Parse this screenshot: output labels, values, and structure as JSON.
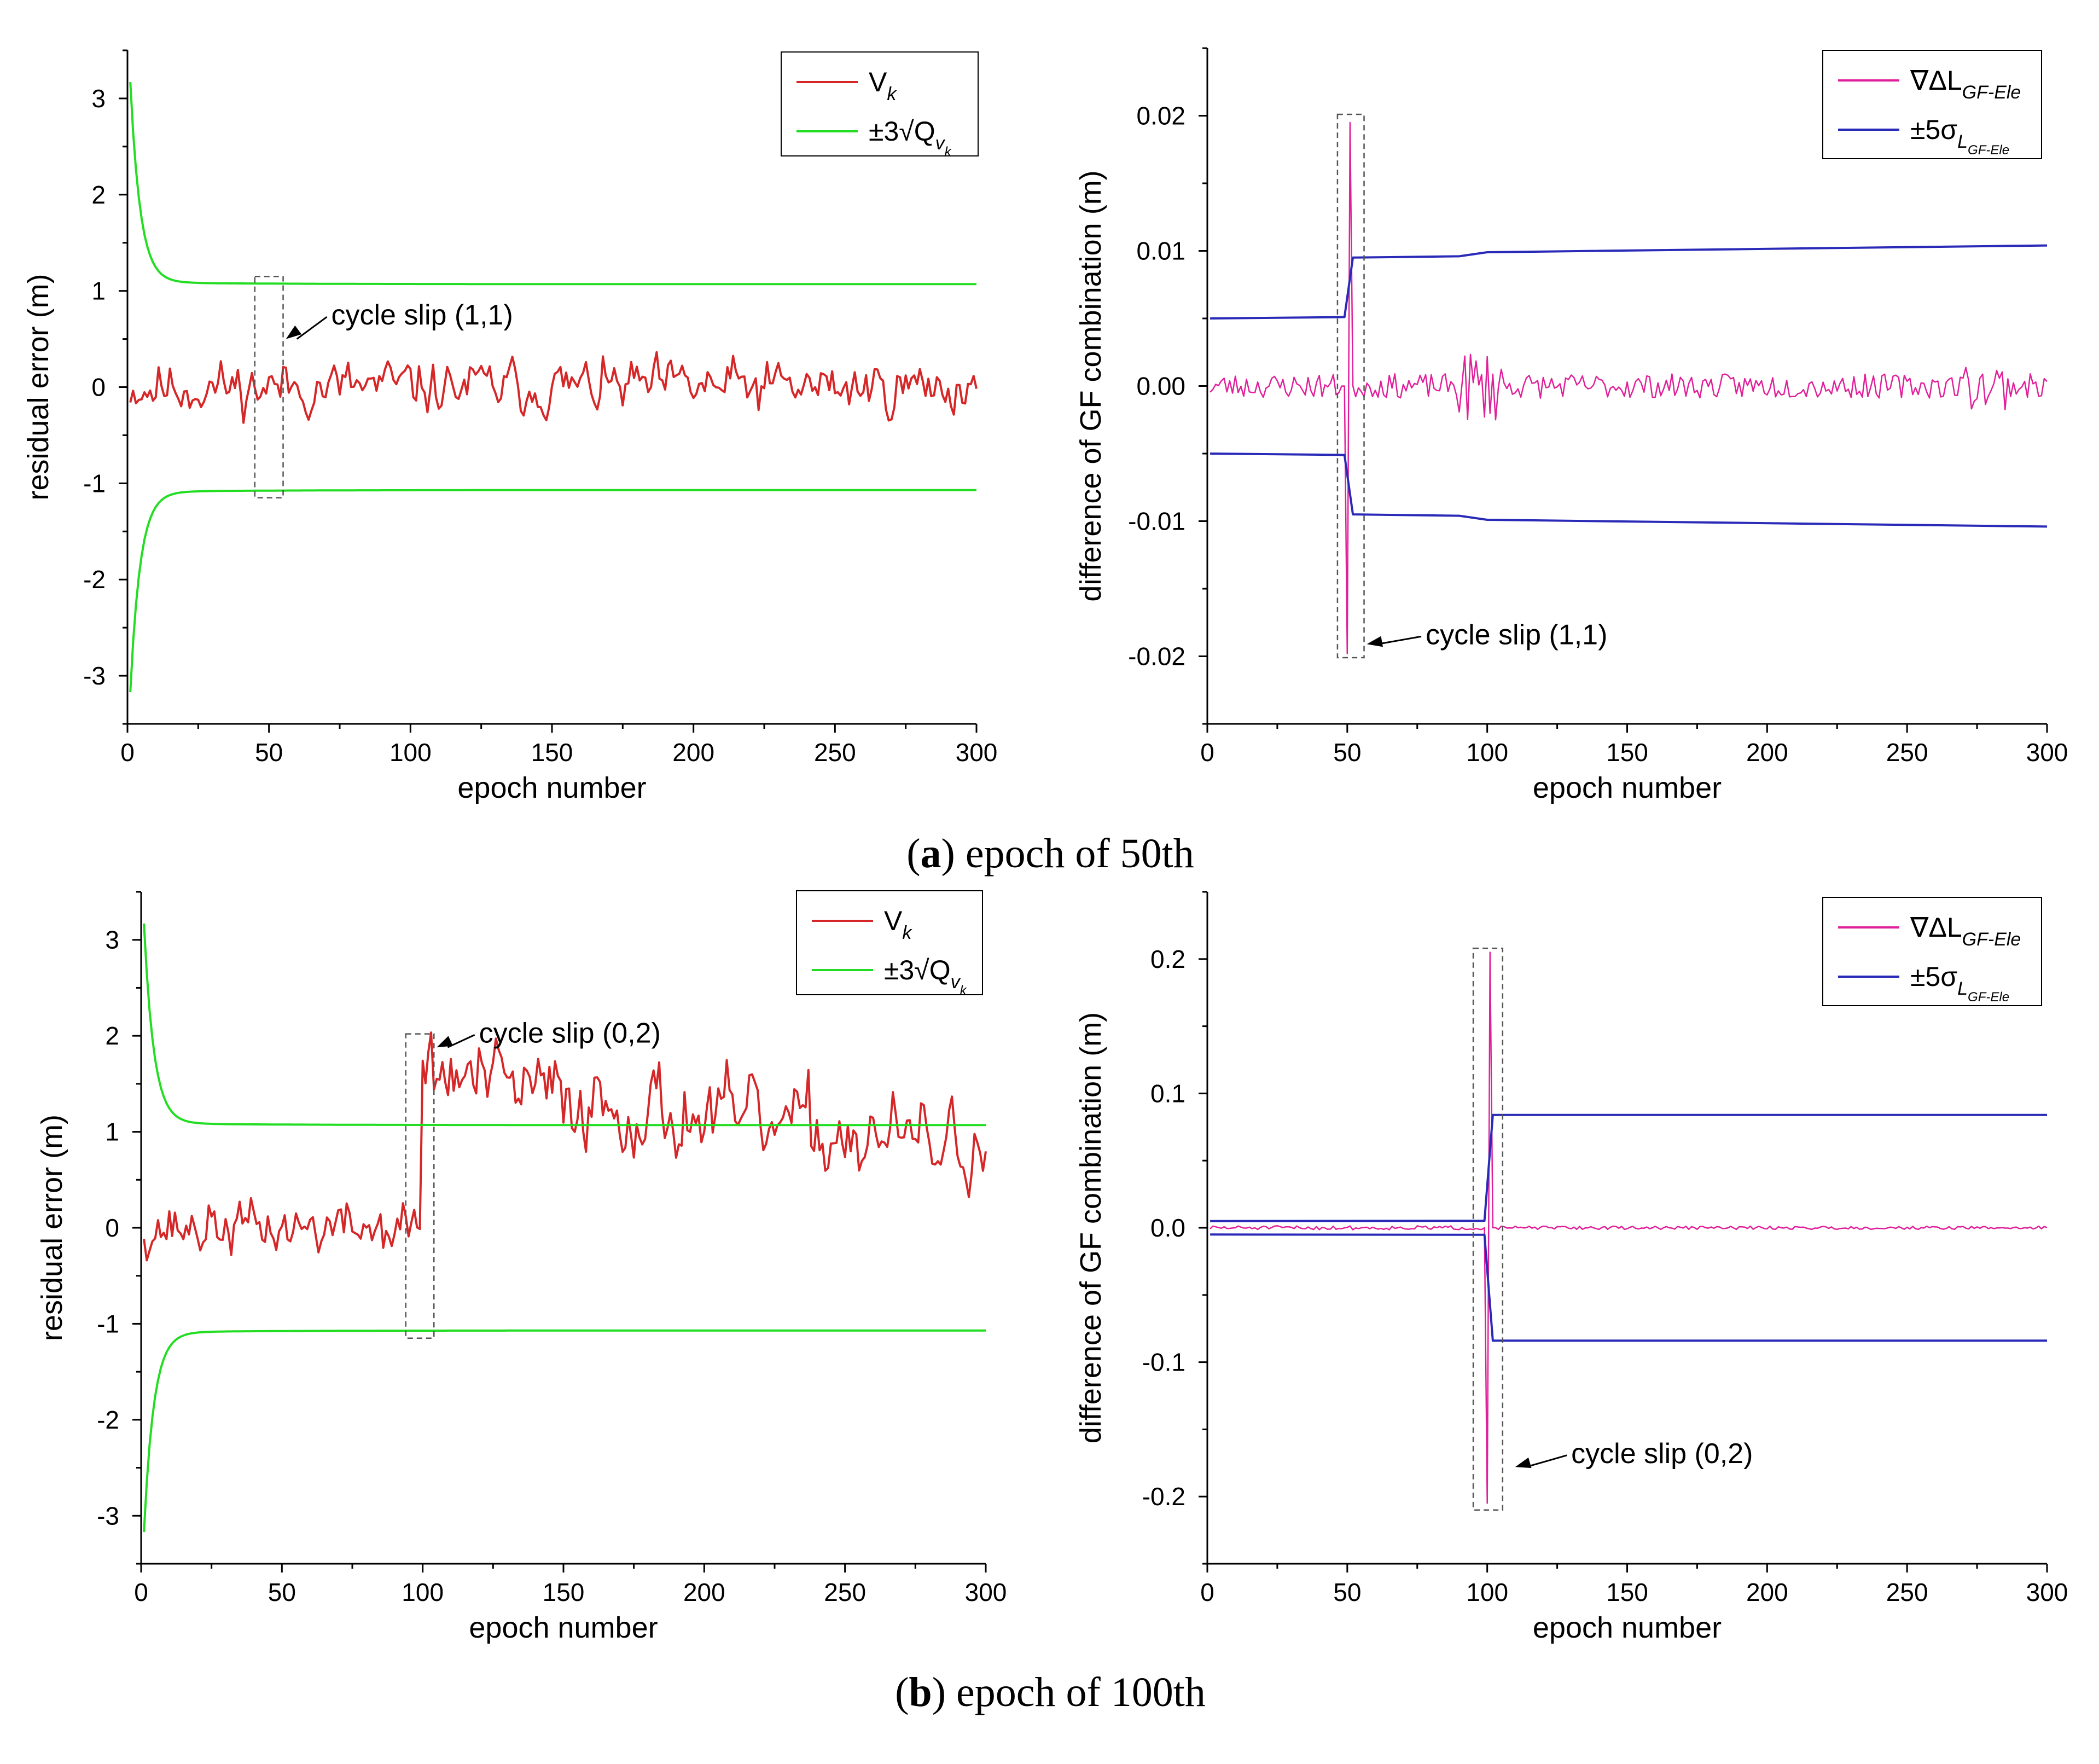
{
  "colors": {
    "residual": "#d62728",
    "threshold": "#22dd22",
    "gf": "#e0209a",
    "sigma": "#2a2ab8",
    "axis": "#000000",
    "box": "#555555"
  },
  "captions": [
    {
      "letter": "a",
      "text": ") epoch of 50th",
      "open": "("
    },
    {
      "letter": "b",
      "text": ") epoch of 100th",
      "open": "("
    }
  ],
  "chart_data": [
    {
      "id": "a-left",
      "type": "line",
      "xlabel": "epoch number",
      "ylabel": "residual error (m)",
      "xlim": [
        0,
        300
      ],
      "ylim": [
        -3.5,
        3.5
      ],
      "xticks": [
        0,
        50,
        100,
        150,
        200,
        250,
        300
      ],
      "yticks": [
        -3,
        -2,
        -1,
        0,
        1,
        2,
        3
      ],
      "ytick_labels": [
        "-3",
        "-2",
        "-1",
        "0",
        "1",
        "2",
        "3"
      ],
      "legend": [
        {
          "base": "V",
          "sub": "k",
          "subsub": ""
        },
        {
          "base": "±3√Q",
          "sub": "v",
          "subsub": "k"
        }
      ],
      "series": [
        {
          "name": "V_k",
          "kind": "noise",
          "seed": 11,
          "start": 1,
          "end": 300,
          "amp": 0.23,
          "jump_epoch": 0,
          "jump_size": 0,
          "decay": 0,
          "spike": []
        },
        {
          "name": "+3√Q",
          "kind": "threshold",
          "limit": 1.07,
          "start_val": 3.15,
          "tau": 3.5
        },
        {
          "name": "-3√Q",
          "kind": "threshold",
          "limit": -1.07,
          "start_val": -3.15,
          "tau": 3.5
        }
      ],
      "box": {
        "x1": 45,
        "x2": 55,
        "y1": -1.15,
        "y2": 1.15
      },
      "annotation": {
        "text": "cycle slip (1,1)",
        "x": 72,
        "y": 0.65,
        "arrow_to": [
          56,
          0.5
        ]
      }
    },
    {
      "id": "a-right",
      "type": "line",
      "xlabel": "epoch number",
      "ylabel": "difference of GF combination (m)",
      "xlim": [
        0,
        300
      ],
      "ylim": [
        -0.025,
        0.025
      ],
      "xticks": [
        0,
        50,
        100,
        150,
        200,
        250,
        300
      ],
      "yticks": [
        -0.02,
        -0.01,
        0.0,
        0.01,
        0.02
      ],
      "ytick_labels": [
        "-0.02",
        "-0.01",
        "0.00",
        "0.01",
        "0.02"
      ],
      "legend": [
        {
          "base": "∇ΔL",
          "sub": "GF-Ele",
          "subsub": ""
        },
        {
          "base": "±5σ",
          "sub": "L",
          "subsub": "GF-Ele"
        }
      ],
      "series": [
        {
          "name": "GF diff",
          "kind": "gfnoise",
          "seed": 23,
          "start": 1,
          "end": 300,
          "amp": 0.0009,
          "spike": [
            [
              49,
              0.0
            ],
            [
              50,
              -0.0198
            ],
            [
              51,
              0.0195
            ],
            [
              52,
              0.0
            ]
          ]
        },
        {
          "name": "+5σ",
          "kind": "sigma",
          "pts": [
            [
              1,
              0.005
            ],
            [
              49,
              0.0051
            ],
            [
              52,
              0.0095
            ],
            [
              90,
              0.0096
            ],
            [
              100,
              0.0099
            ],
            [
              300,
              0.0104
            ]
          ]
        },
        {
          "name": "-5σ",
          "kind": "sigma",
          "pts": [
            [
              1,
              -0.005
            ],
            [
              49,
              -0.0051
            ],
            [
              52,
              -0.0095
            ],
            [
              90,
              -0.0096
            ],
            [
              100,
              -0.0099
            ],
            [
              300,
              -0.0104
            ]
          ]
        }
      ],
      "box": {
        "x1": 46.5,
        "x2": 56,
        "y1": -0.0201,
        "y2": 0.0201
      },
      "annotation": {
        "text": "cycle slip (1,1)",
        "x": 78,
        "y": -0.0191,
        "arrow_to": [
          57,
          -0.0191
        ]
      }
    },
    {
      "id": "b-left",
      "type": "line",
      "xlabel": "epoch number",
      "ylabel": "residual error (m)",
      "xlim": [
        0,
        300
      ],
      "ylim": [
        -3.5,
        3.5
      ],
      "xticks": [
        0,
        50,
        100,
        150,
        200,
        250,
        300
      ],
      "yticks": [
        -3,
        -2,
        -1,
        0,
        1,
        2,
        3
      ],
      "ytick_labels": [
        "-3",
        "-2",
        "-1",
        "0",
        "1",
        "2",
        "3"
      ],
      "legend": [
        {
          "base": "V",
          "sub": "k",
          "subsub": ""
        },
        {
          "base": "±3√Q",
          "sub": "v",
          "subsub": "k"
        }
      ],
      "series": [
        {
          "name": "V_k",
          "kind": "noise",
          "seed": 37,
          "start": 1,
          "end": 300,
          "amp": 0.23,
          "jump_epoch": 100,
          "jump_size": 1.9,
          "decay": 0.0047,
          "spike": []
        },
        {
          "name": "+3√Q",
          "kind": "threshold",
          "limit": 1.07,
          "start_val": 3.15,
          "tau": 3.5
        },
        {
          "name": "-3√Q",
          "kind": "threshold",
          "limit": -1.07,
          "start_val": -3.15,
          "tau": 3.5
        }
      ],
      "box": {
        "x1": 94,
        "x2": 104,
        "y1": -1.15,
        "y2": 2.02
      },
      "annotation": {
        "text": "cycle slip (0,2)",
        "x": 120,
        "y": 1.93,
        "arrow_to": [
          105,
          1.88
        ]
      }
    },
    {
      "id": "b-right",
      "type": "line",
      "xlabel": "epoch number",
      "ylabel": "difference of GF combination (m)",
      "xlim": [
        0,
        300
      ],
      "ylim": [
        -0.25,
        0.25
      ],
      "xticks": [
        0,
        50,
        100,
        150,
        200,
        250,
        300
      ],
      "yticks": [
        -0.2,
        -0.1,
        0.0,
        0.1,
        0.2
      ],
      "ytick_labels": [
        "-0.2",
        "-0.1",
        "0.0",
        "0.1",
        "0.2"
      ],
      "legend": [
        {
          "base": "∇ΔL",
          "sub": "GF-Ele",
          "subsub": ""
        },
        {
          "base": "±5σ",
          "sub": "L",
          "subsub": "GF-Ele"
        }
      ],
      "series": [
        {
          "name": "GF diff",
          "kind": "gfnoise",
          "seed": 51,
          "start": 1,
          "end": 300,
          "amp": 0.0015,
          "spike": [
            [
              99,
              0.0
            ],
            [
              100,
              -0.205
            ],
            [
              101,
              0.205
            ],
            [
              102,
              0.0
            ]
          ]
        },
        {
          "name": "+5σ",
          "kind": "sigma",
          "pts": [
            [
              1,
              0.005
            ],
            [
              99,
              0.0052
            ],
            [
              102,
              0.084
            ],
            [
              300,
              0.084
            ]
          ]
        },
        {
          "name": "-5σ",
          "kind": "sigma",
          "pts": [
            [
              1,
              -0.005
            ],
            [
              99,
              -0.0052
            ],
            [
              102,
              -0.084
            ],
            [
              300,
              -0.084
            ]
          ]
        }
      ],
      "box": {
        "x1": 95,
        "x2": 105.5,
        "y1": -0.21,
        "y2": 0.208
      },
      "annotation": {
        "text": "cycle slip (0,2)",
        "x": 130,
        "y": -0.175,
        "arrow_to": [
          110,
          -0.178
        ]
      }
    }
  ]
}
